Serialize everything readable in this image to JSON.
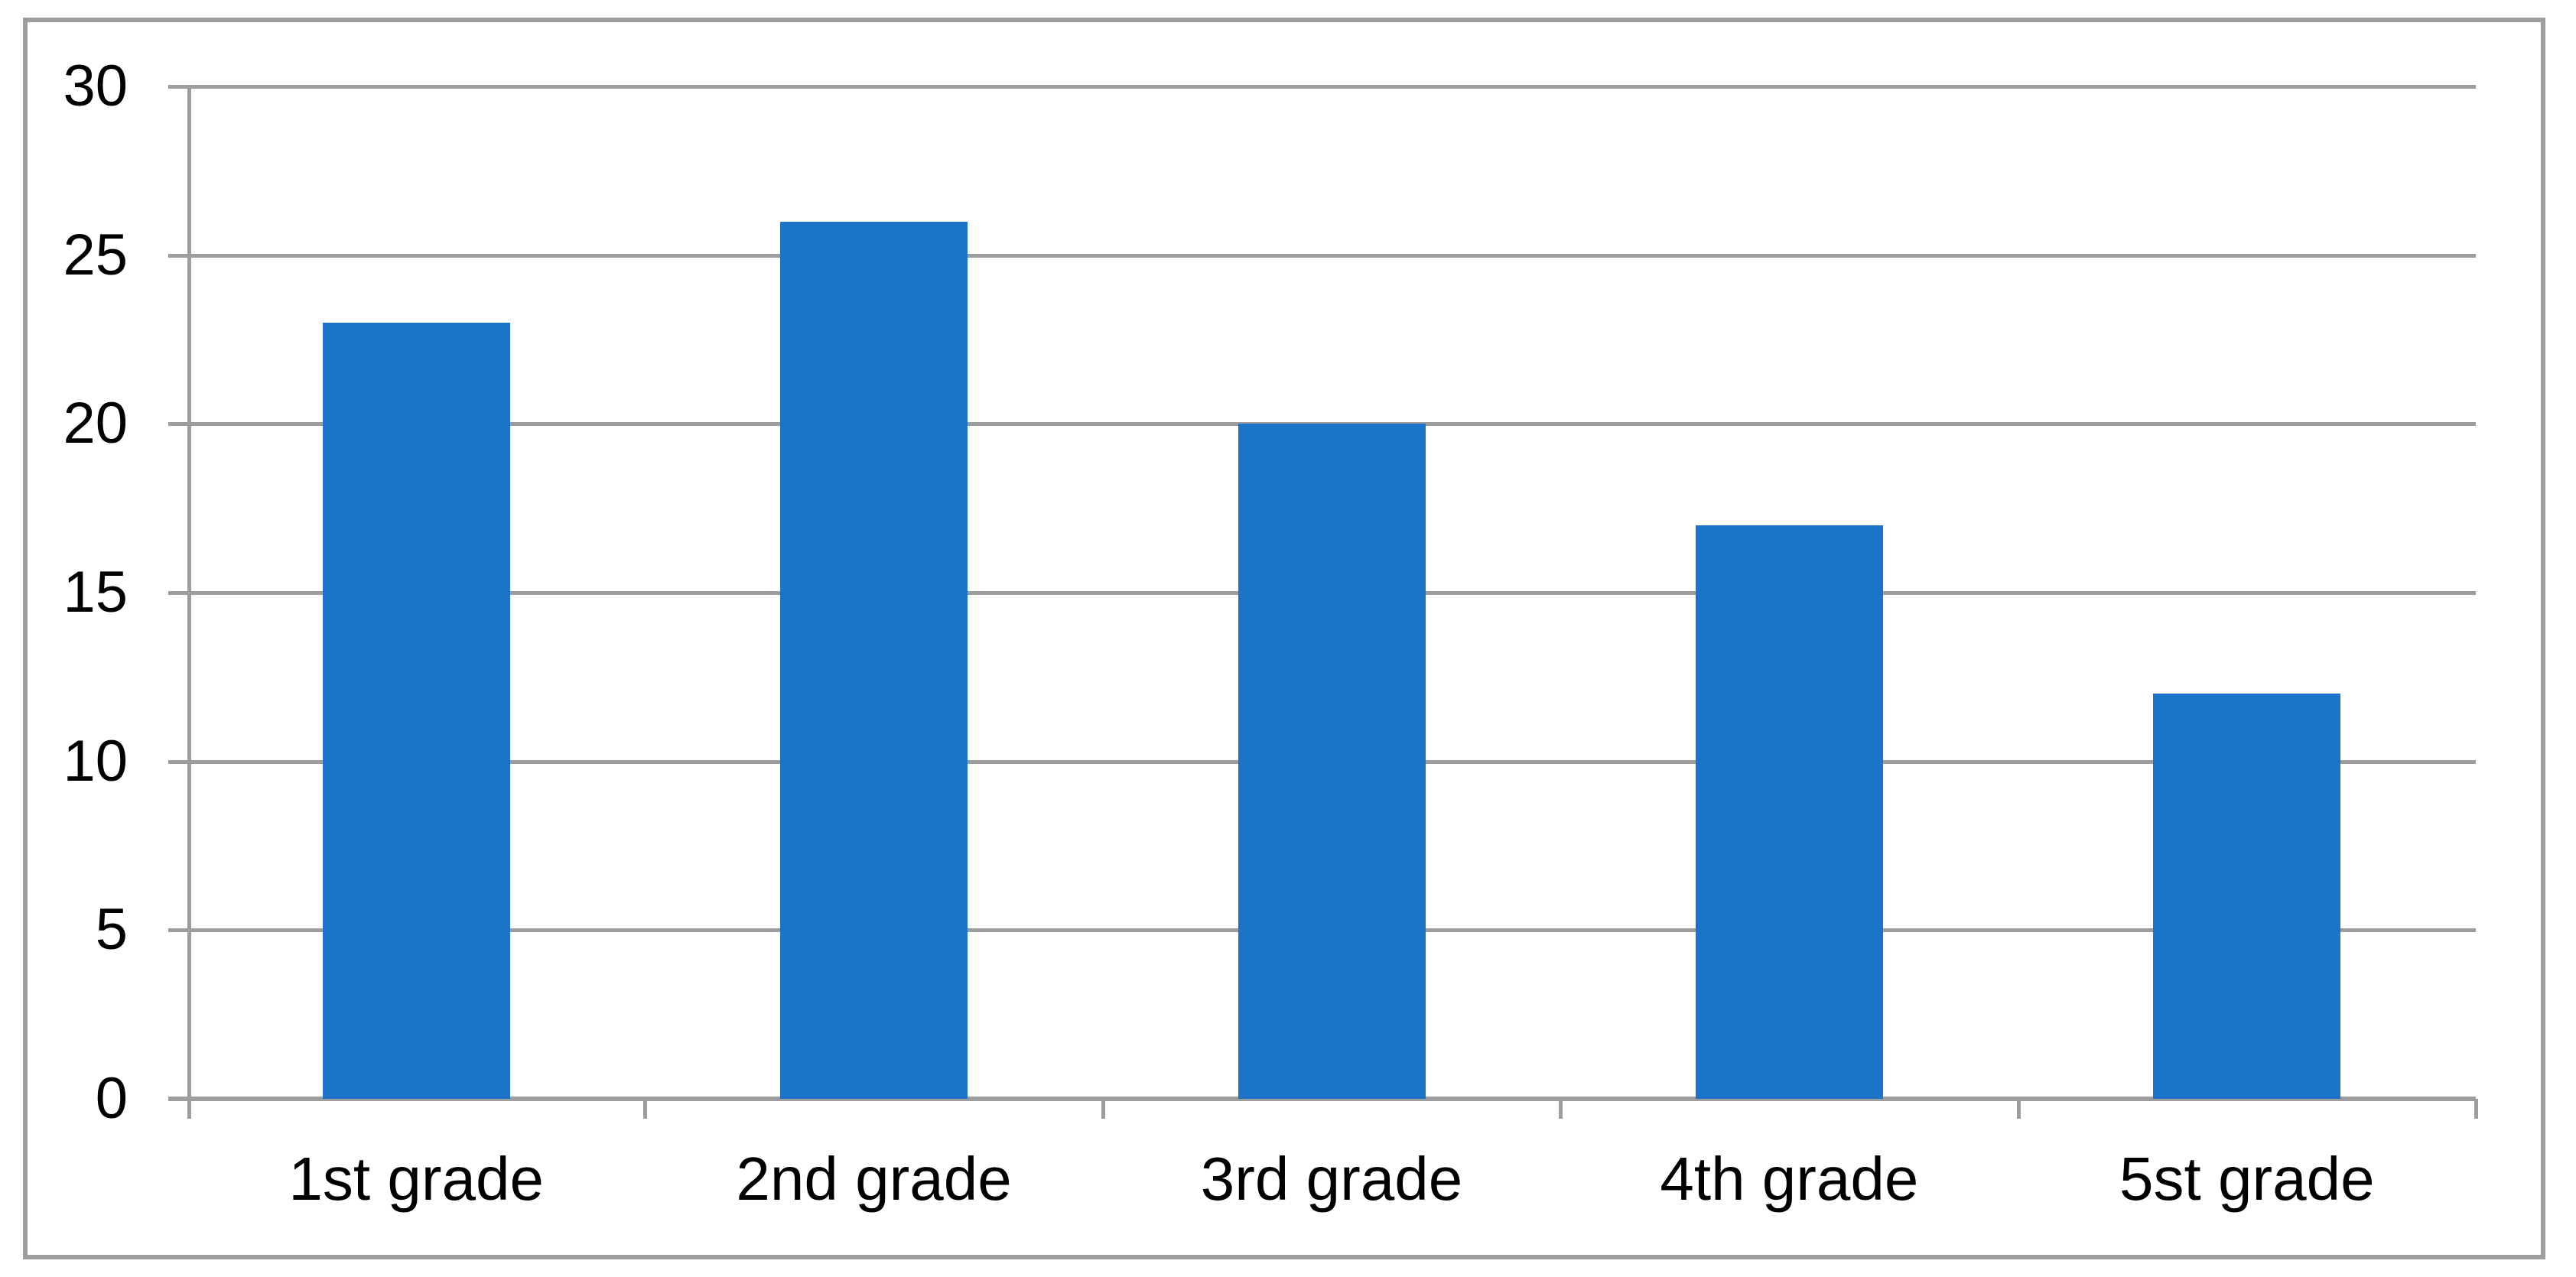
{
  "chart_data": {
    "type": "bar",
    "title": "",
    "xlabel": "",
    "ylabel": "",
    "categories": [
      "1st grade",
      "2nd grade",
      "3rd grade",
      "4th grade",
      "5st grade"
    ],
    "values": [
      23,
      26,
      20,
      17,
      12
    ],
    "series": [
      {
        "name": "",
        "values": [
          23,
          26,
          20,
          17,
          12
        ]
      }
    ],
    "ylim": [
      0,
      30
    ],
    "ytick_step": 5,
    "yticks": [
      0,
      5,
      10,
      15,
      20,
      25,
      30
    ],
    "grid": true,
    "legend": false,
    "colors": {
      "bar": "#1B74C8",
      "gridline": "#9D9D9D",
      "axis": "#9D9D9D",
      "frame_border": "#9D9D9D",
      "label_text": "#000000",
      "background": "#FFFFFF"
    }
  }
}
